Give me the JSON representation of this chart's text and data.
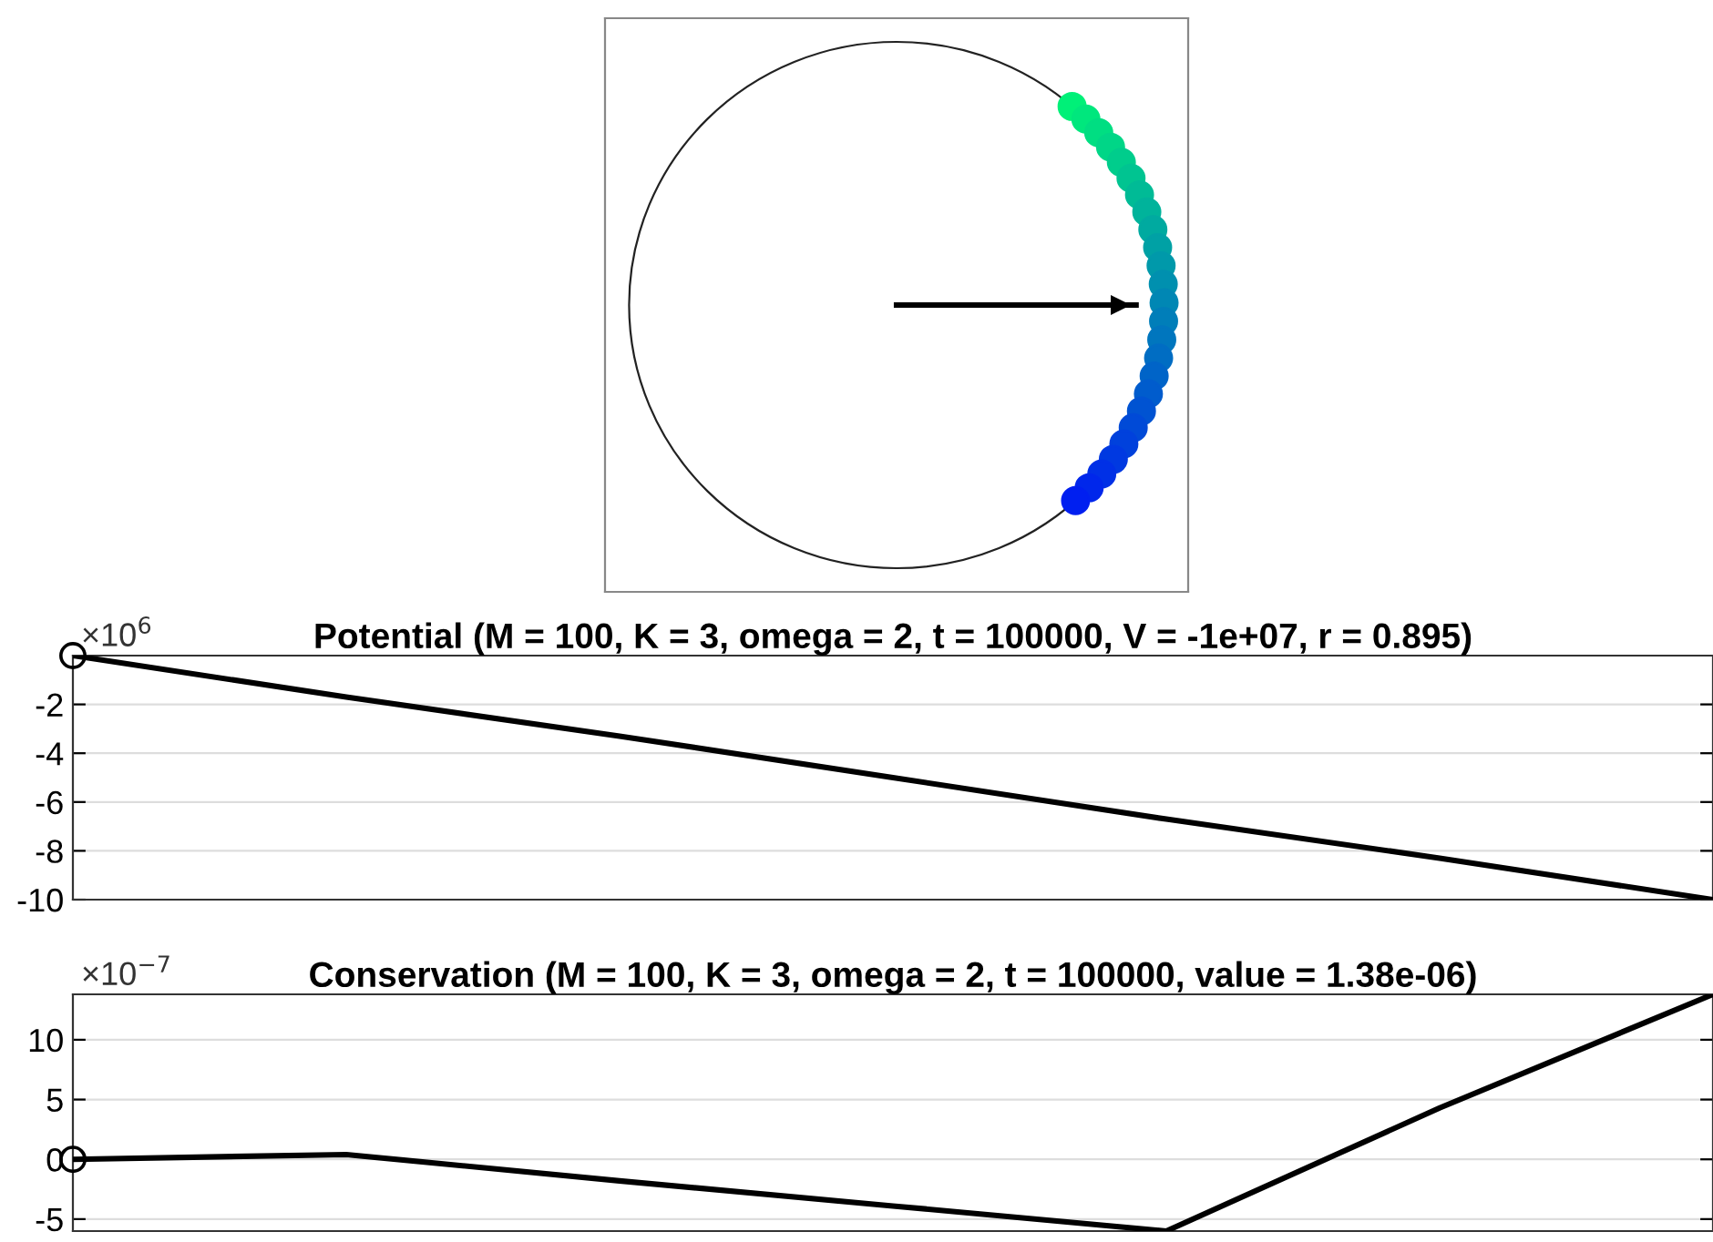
{
  "chart_data": [
    {
      "type": "line",
      "title": "Potential (M = 100, K = 3, omega = 2, t = 100000, V = -1e+07, r = 0.895)",
      "categories": [
        null,
        null,
        null,
        null,
        null,
        null,
        null
      ],
      "ylim": [
        -10,
        0
      ],
      "yticks": [
        -2,
        -4,
        -6,
        -8,
        -10
      ],
      "grid": "y",
      "tick_labels": "y",
      "annotations": [
        "×10$^{6}$"
      ],
      "series": [
        {
          "color": "#000000",
          "values": [
            0,
            -1.7,
            -3.3,
            -5,
            -6.7,
            -8.3,
            -10
          ]
        },
        {
          "type": "scatter",
          "marker": "circle",
          "color": "#000000",
          "values": [
            0,
            null,
            null,
            null,
            null,
            null,
            null
          ]
        }
      ]
    },
    {
      "type": "line",
      "title": "Conservation (M = 100, K = 3, omega = 2, t = 100000, value = 1.38e-06)",
      "categories": [
        null,
        null,
        null,
        null,
        null,
        null,
        null
      ],
      "ylim": [
        -6,
        13.8
      ],
      "yticks": [
        -5,
        0,
        5,
        10
      ],
      "grid": "y",
      "tick_labels": "y",
      "annotations": [
        "×10$^{−7}$"
      ],
      "series": [
        {
          "color": "#000000",
          "values": [
            0,
            0.4,
            -1.8,
            -3.9,
            -6,
            4.3,
            13.8
          ]
        },
        {
          "type": "scatter",
          "marker": "circle",
          "color": "#000000",
          "values": [
            0,
            null,
            null,
            null,
            null,
            null,
            null
          ]
        }
      ]
    }
  ]
}
